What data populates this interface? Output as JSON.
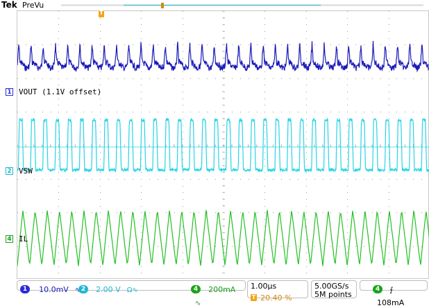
{
  "topbar": {
    "brand": "Tek",
    "mode": "PreVu"
  },
  "channels": [
    {
      "id": "1",
      "label": "VOUT (1.1V offset)",
      "color": "#1a1ab8",
      "marker_color": "#2b2bd8"
    },
    {
      "id": "2",
      "label": "VSW",
      "color": "#27d3e6",
      "marker_color": "#1fb8d0"
    },
    {
      "id": "4",
      "label": "IL",
      "color": "#22c022",
      "marker_color": "#1aa51a"
    }
  ],
  "trigger_marker": {
    "text": "T"
  },
  "readouts": {
    "ch1": {
      "id": "1",
      "scale": "10.0mV",
      "coupling_icon": "∿"
    },
    "ch2": {
      "id": "2",
      "scale": "2.00 V",
      "coupling_icon": "Ω∿"
    },
    "ch4": {
      "id": "4",
      "scale": "200mA",
      "coupling_icon": "∿"
    },
    "timebase": {
      "scale": "1.00μs",
      "trig_pos_icon": "T",
      "trig_pos": "20.40 %"
    },
    "acquisition": {
      "sample_rate": "5.00GS/s",
      "record_length": "5M points"
    },
    "trigger": {
      "source": "4",
      "slope_icon": "⨍",
      "level": "108mA"
    }
  }
}
